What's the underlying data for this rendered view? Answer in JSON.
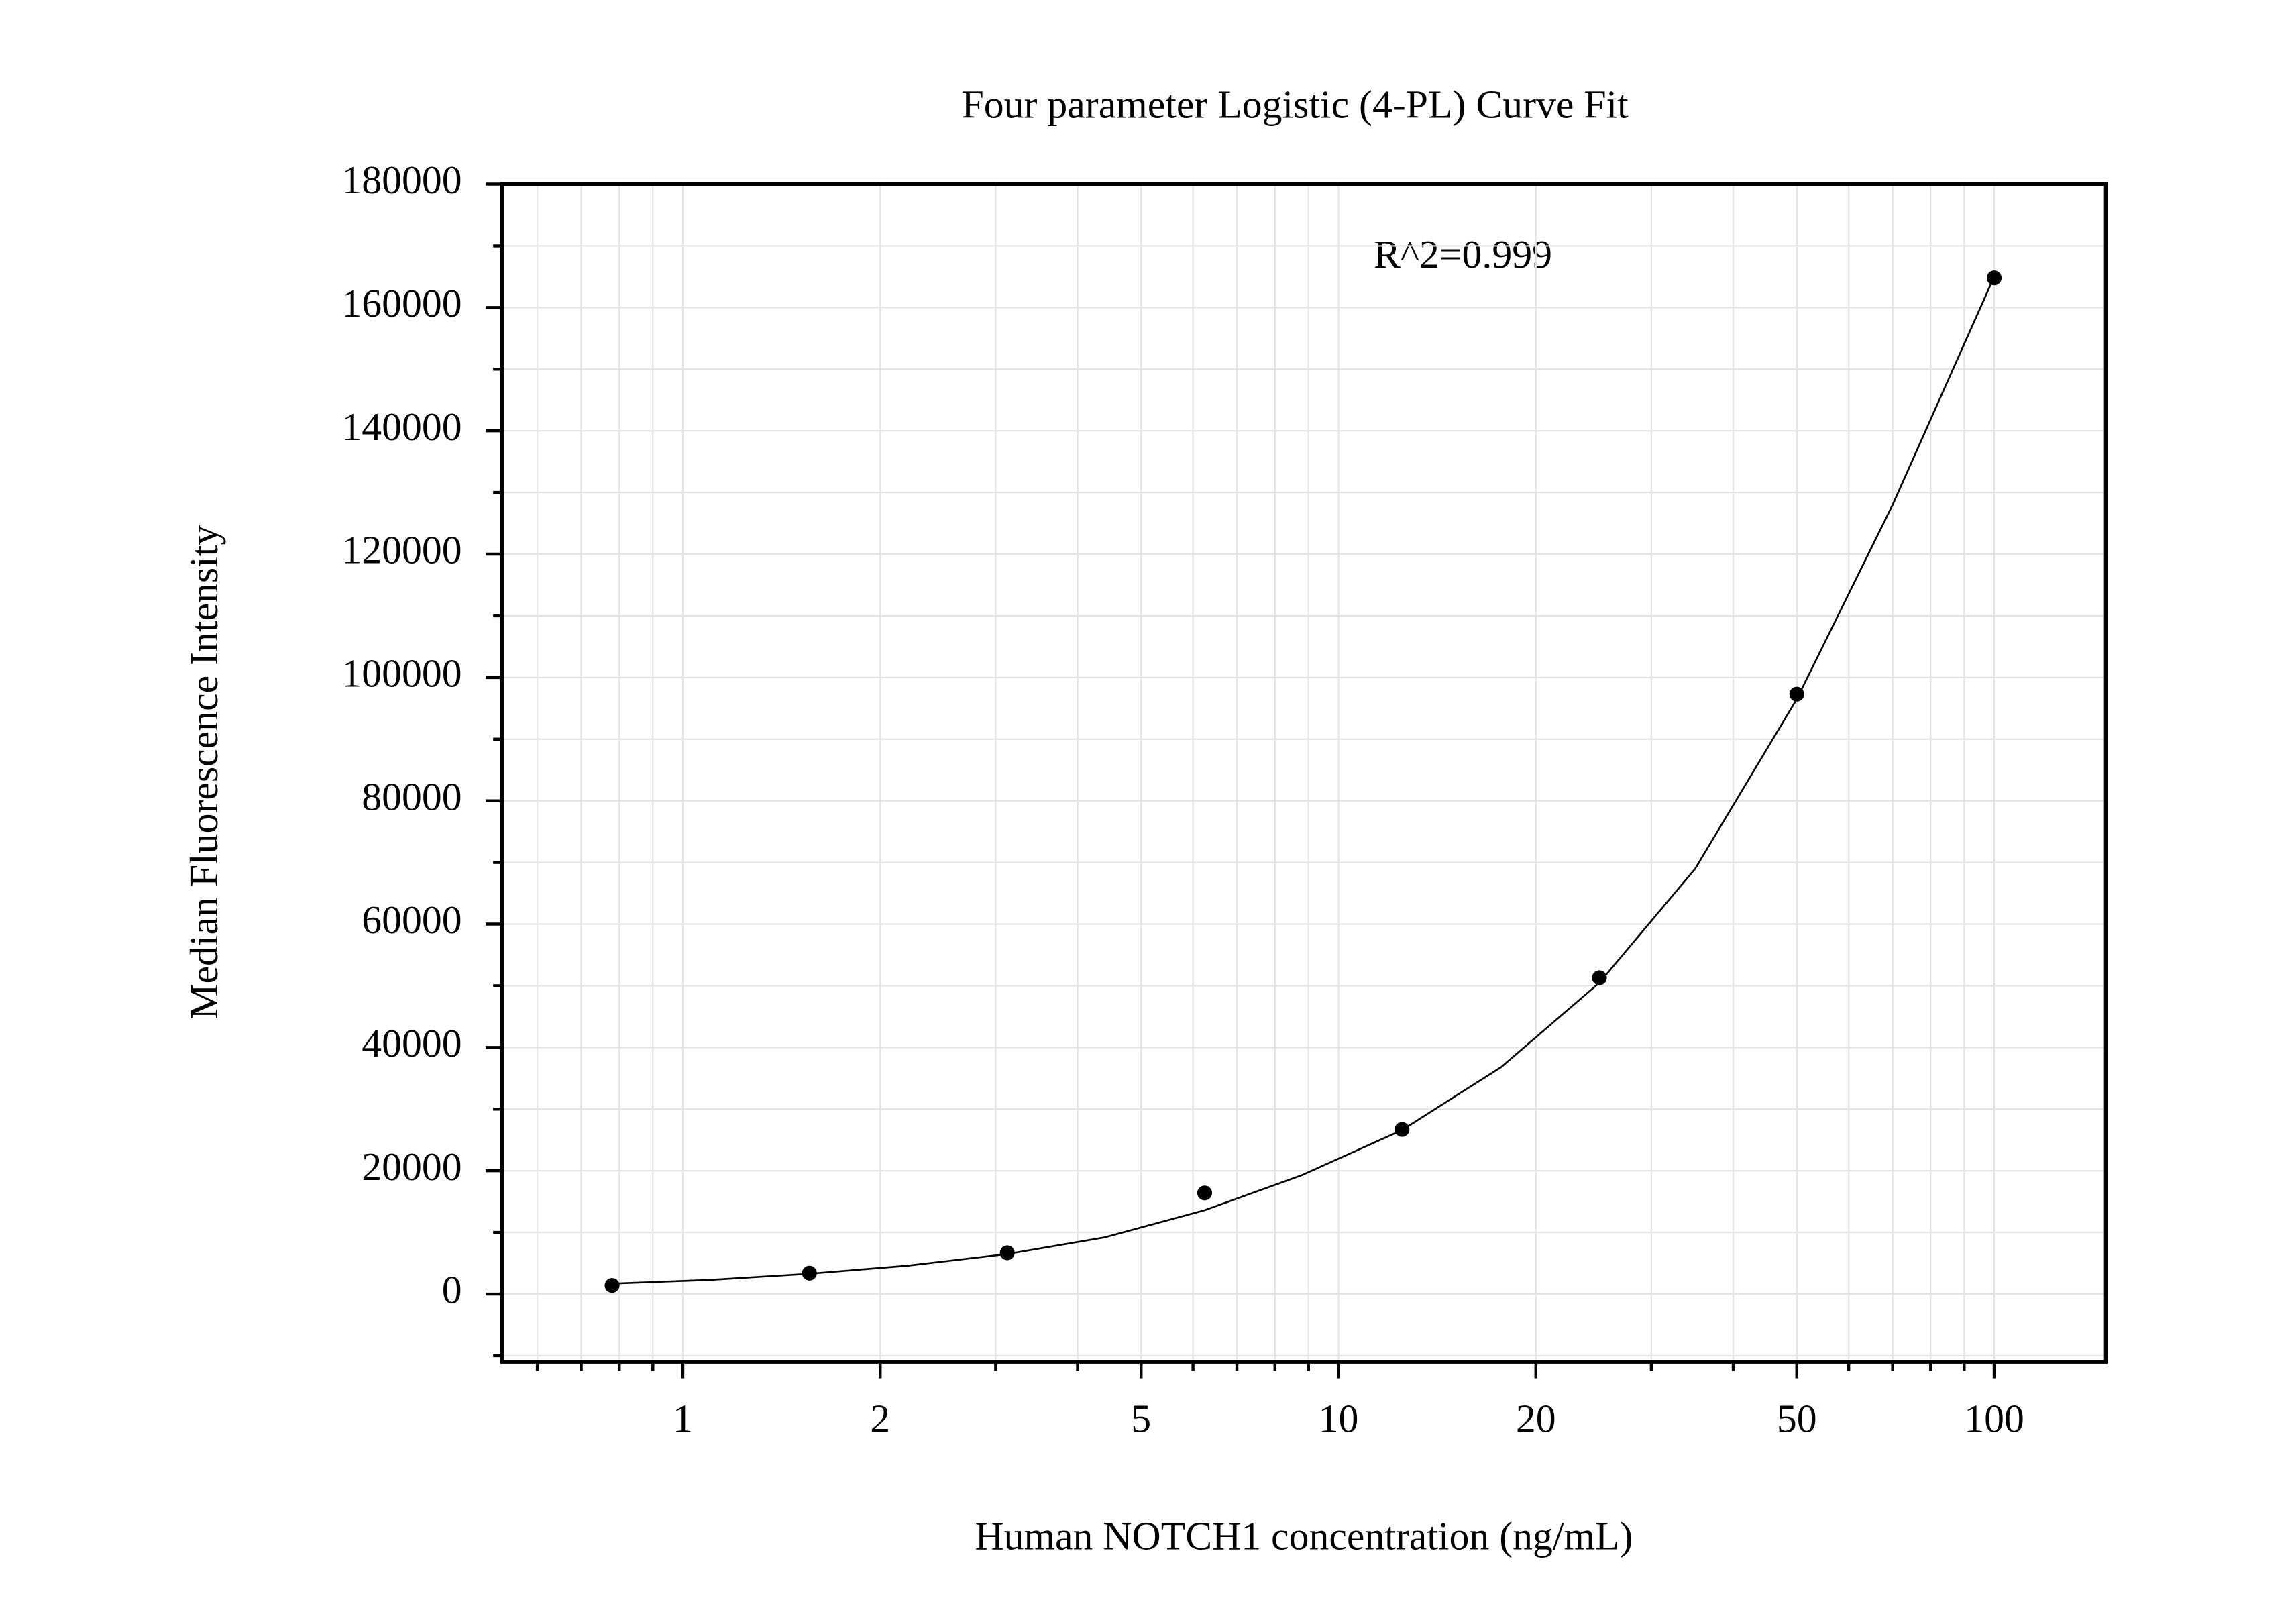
{
  "chart_data": {
    "type": "scatter",
    "title": "Four parameter Logistic (4-PL) Curve Fit",
    "x_label": "Human NOTCH1 concentration (ng/mL)",
    "y_label": "Median Fluorescence Intensity",
    "annotation": "R^2=0.999",
    "x": [
      0.78,
      1.56,
      3.125,
      6.25,
      12.5,
      25,
      50,
      100
    ],
    "values": [
      1400,
      3400,
      6700,
      16400,
      26700,
      51300,
      97300,
      164800
    ],
    "color": "#000000",
    "fit": {
      "x": [
        0.78,
        1.1,
        1.56,
        2.2,
        3.125,
        4.4,
        6.25,
        8.8,
        12.5,
        17.7,
        25,
        35,
        50,
        70,
        100
      ],
      "y": [
        1700,
        2300,
        3300,
        4600,
        6500,
        9200,
        13600,
        19300,
        26600,
        36800,
        50500,
        69000,
        96500,
        128000,
        165000
      ]
    },
    "xlim": [
      0.53,
      148
    ],
    "x_log": true,
    "xticks": [
      1,
      2,
      5,
      10,
      20,
      50,
      100
    ],
    "xminorticks": [
      0.6,
      0.7,
      0.8,
      0.9,
      3,
      4,
      6,
      7,
      8,
      9,
      30,
      40,
      60,
      70,
      80,
      90
    ],
    "ylim": [
      -11000,
      180000
    ],
    "yticks": [
      0,
      20000,
      40000,
      60000,
      80000,
      100000,
      120000,
      140000,
      160000,
      180000
    ],
    "yminorticks": [
      -10000,
      10000,
      30000,
      50000,
      70000,
      90000,
      110000,
      130000,
      150000,
      170000
    ],
    "grid": true
  }
}
